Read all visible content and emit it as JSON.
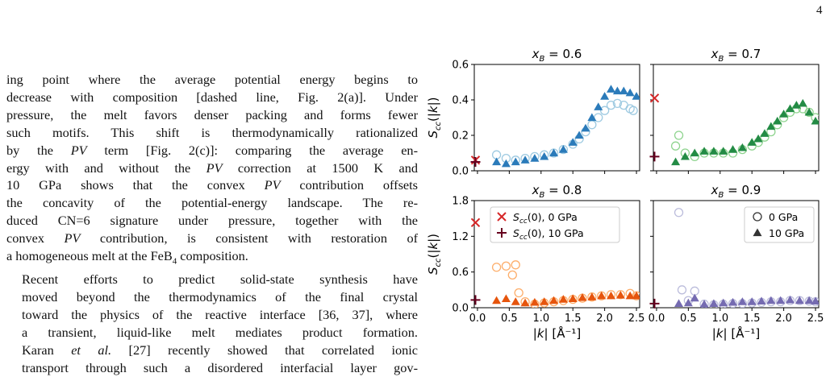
{
  "page_number": "4",
  "text": {
    "p1_lines": [
      "ing point where the average potential energy begins to",
      "decrease with composition [dashed line, Fig. 2(a)]. Under",
      "pressure, the melt favors denser packing and forms fewer",
      "such motifs. This shift is thermodynamically rationalized",
      "by the PV term [Fig. 2(c)]: comparing the average en-",
      "ergy with and without the PV correction at 1500 K and",
      "10 GPa shows that the convex PV contribution offsets",
      "the concavity of the potential-energy landscape. The re-",
      "duced CN=6 signature under pressure, together with the",
      "convex PV contribution, is consistent with restoration of",
      "a homogeneous melt at the FeB4 composition."
    ],
    "p2_lines": [
      "Recent efforts to predict solid-state synthesis have",
      "moved beyond the thermodynamics of the final crystal",
      "toward the physics of the reactive interface [36, 37], where",
      "a transient, liquid-like melt mediates product formation.",
      "Karan et al. [27] recently showed that correlated ionic",
      "transport through such a disordered interfacial layer gov-"
    ]
  },
  "figure": {
    "ylabel": "S_cc(|k|)",
    "xlabel": "|k| [Å⁻¹]",
    "panel_titles": [
      "x_B = 0.6",
      "x_B = 0.7",
      "x_B = 0.8",
      "x_B = 0.9"
    ],
    "legend_left": {
      "entries": [
        "S_cc(0), 0 GPa",
        "S_cc(0), 10 GPa"
      ]
    },
    "legend_right": {
      "entries": [
        "0 GPa",
        "10 GPa"
      ]
    },
    "colors": {
      "panel_06": {
        "light": "#9ecae1",
        "dark": "#2b7bba"
      },
      "panel_07": {
        "light": "#8fd48f",
        "dark": "#238b45"
      },
      "panel_08": {
        "light": "#fdae6b",
        "dark": "#e6550d"
      },
      "panel_09": {
        "light": "#bcbddc",
        "dark": "#756bb1"
      },
      "scc0_0GPa": "#d62728",
      "scc0_10GPa": "#67001f"
    }
  },
  "chart_data": [
    {
      "type": "scatter",
      "title": "x_B = 0.6",
      "ylabel": "S_cc(|k|)",
      "xlim": [
        0,
        2.5
      ],
      "ylim": [
        0,
        0.6
      ],
      "xticks": [
        "0.0",
        "0.5",
        "1.0",
        "1.5",
        "2.0",
        "2.5"
      ],
      "yticks": [
        "0.0",
        "0.2",
        "0.4",
        "0.6"
      ],
      "scc0": {
        "0 GPa": 0.06,
        "10 GPa": 0.05
      },
      "series": [
        {
          "name": "0 GPa",
          "marker": "circle",
          "x": [
            0.3,
            0.45,
            0.6,
            0.75,
            0.9,
            1.05,
            1.2,
            1.35,
            1.5,
            1.6,
            1.7,
            1.8,
            1.9,
            2.0,
            2.1,
            2.2,
            2.3,
            2.4,
            2.45
          ],
          "y": [
            0.09,
            0.07,
            0.06,
            0.07,
            0.08,
            0.09,
            0.1,
            0.12,
            0.15,
            0.18,
            0.22,
            0.26,
            0.3,
            0.34,
            0.37,
            0.38,
            0.37,
            0.35,
            0.34
          ]
        },
        {
          "name": "10 GPa",
          "marker": "triangle",
          "x": [
            0.3,
            0.45,
            0.6,
            0.75,
            0.9,
            1.05,
            1.2,
            1.35,
            1.5,
            1.6,
            1.7,
            1.8,
            1.9,
            2.0,
            2.1,
            2.2,
            2.3,
            2.4,
            2.5
          ],
          "y": [
            0.05,
            0.04,
            0.05,
            0.06,
            0.07,
            0.08,
            0.1,
            0.12,
            0.16,
            0.2,
            0.24,
            0.3,
            0.36,
            0.42,
            0.46,
            0.45,
            0.45,
            0.44,
            0.42
          ]
        }
      ]
    },
    {
      "type": "scatter",
      "title": "x_B = 0.7",
      "xlim": [
        0,
        2.5
      ],
      "ylim": [
        0,
        0.6
      ],
      "xticks": [
        "0.0",
        "0.5",
        "1.0",
        "1.5",
        "2.0",
        "2.5"
      ],
      "scc0": {
        "0 GPa": 0.41,
        "10 GPa": 0.08
      },
      "series": [
        {
          "name": "0 GPa",
          "marker": "circle",
          "x": [
            0.3,
            0.35,
            0.45,
            0.6,
            0.75,
            0.9,
            1.05,
            1.2,
            1.35,
            1.5,
            1.6,
            1.7,
            1.8,
            1.9,
            2.0,
            2.1,
            2.2,
            2.3,
            2.4,
            2.5
          ],
          "y": [
            0.14,
            0.2,
            0.1,
            0.08,
            0.1,
            0.1,
            0.1,
            0.1,
            0.12,
            0.14,
            0.16,
            0.19,
            0.22,
            0.26,
            0.3,
            0.33,
            0.35,
            0.35,
            0.33,
            0.3
          ]
        },
        {
          "name": "10 GPa",
          "marker": "triangle",
          "x": [
            0.3,
            0.45,
            0.6,
            0.75,
            0.9,
            1.05,
            1.2,
            1.35,
            1.5,
            1.6,
            1.7,
            1.8,
            1.9,
            2.0,
            2.1,
            2.2,
            2.3,
            2.4,
            2.5
          ],
          "y": [
            0.05,
            0.08,
            0.1,
            0.11,
            0.11,
            0.11,
            0.12,
            0.13,
            0.16,
            0.18,
            0.21,
            0.25,
            0.28,
            0.32,
            0.35,
            0.37,
            0.38,
            0.33,
            0.28
          ]
        }
      ]
    },
    {
      "type": "scatter",
      "title": "x_B = 0.8",
      "ylabel": "S_cc(|k|)",
      "xlabel": "|k| [Å⁻¹]",
      "xlim": [
        0,
        2.5
      ],
      "ylim": [
        0,
        1.8
      ],
      "xticks": [
        "0.0",
        "0.5",
        "1.0",
        "1.5",
        "2.0",
        "2.5"
      ],
      "yticks": [
        "0.0",
        "0.6",
        "1.2",
        "1.8"
      ],
      "scc0": {
        "0 GPa": 1.43,
        "10 GPa": 0.13
      },
      "series": [
        {
          "name": "0 GPa",
          "marker": "circle",
          "x": [
            0.3,
            0.45,
            0.55,
            0.6,
            0.65,
            0.75,
            0.9,
            1.05,
            1.2,
            1.35,
            1.5,
            1.65,
            1.8,
            1.95,
            2.1,
            2.25,
            2.4,
            2.5
          ],
          "y": [
            0.68,
            0.7,
            0.55,
            0.72,
            0.25,
            0.1,
            0.06,
            0.08,
            0.1,
            0.12,
            0.14,
            0.16,
            0.18,
            0.2,
            0.22,
            0.22,
            0.24,
            0.2
          ]
        },
        {
          "name": "10 GPa",
          "marker": "triangle",
          "x": [
            0.3,
            0.45,
            0.6,
            0.75,
            0.9,
            1.05,
            1.2,
            1.35,
            1.5,
            1.65,
            1.8,
            1.95,
            2.1,
            2.25,
            2.4,
            2.5
          ],
          "y": [
            0.12,
            0.15,
            0.1,
            0.08,
            0.09,
            0.1,
            0.12,
            0.14,
            0.15,
            0.17,
            0.18,
            0.2,
            0.2,
            0.21,
            0.2,
            0.2
          ]
        }
      ]
    },
    {
      "type": "scatter",
      "title": "x_B = 0.9",
      "xlabel": "|k| [Å⁻¹]",
      "xlim": [
        0,
        2.5
      ],
      "ylim": [
        0,
        1.8
      ],
      "xticks": [
        "0.0",
        "0.5",
        "1.0",
        "1.5",
        "2.0",
        "2.5"
      ],
      "scc0": {
        "10 GPa": 0.07
      },
      "series": [
        {
          "name": "0 GPa",
          "marker": "circle",
          "x": [
            0.35,
            0.4,
            0.5,
            0.6,
            0.75,
            0.9,
            1.05,
            1.2,
            1.35,
            1.5,
            1.65,
            1.8,
            1.95,
            2.1,
            2.25,
            2.4,
            2.5
          ],
          "y": [
            1.6,
            0.3,
            0.12,
            0.28,
            0.06,
            0.05,
            0.06,
            0.07,
            0.07,
            0.08,
            0.09,
            0.1,
            0.1,
            0.12,
            0.12,
            0.11,
            0.1
          ]
        },
        {
          "name": "10 GPa",
          "marker": "triangle",
          "x": [
            0.35,
            0.5,
            0.6,
            0.75,
            0.9,
            1.05,
            1.2,
            1.35,
            1.5,
            1.65,
            1.8,
            1.95,
            2.1,
            2.25,
            2.4,
            2.5
          ],
          "y": [
            0.07,
            0.08,
            0.16,
            0.06,
            0.07,
            0.08,
            0.09,
            0.1,
            0.1,
            0.11,
            0.12,
            0.12,
            0.13,
            0.12,
            0.12,
            0.11
          ]
        }
      ]
    }
  ]
}
